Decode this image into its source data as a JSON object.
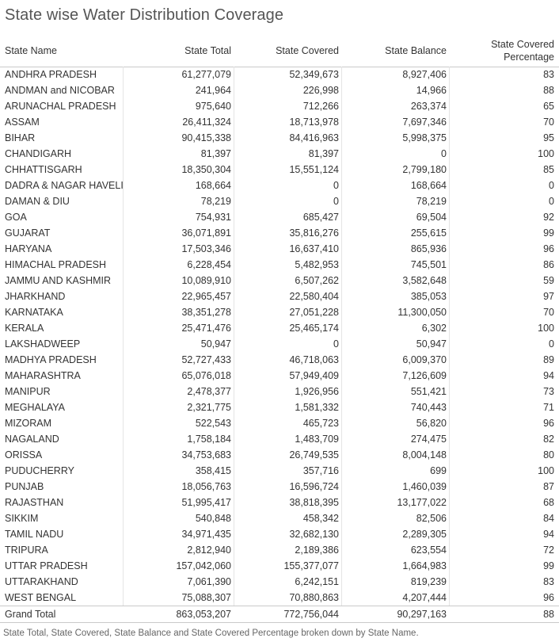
{
  "title": "State wise Water Distribution Coverage",
  "caption": "State Total, State Covered, State Balance and State Covered Percentage broken down by State Name.",
  "chart_data": {
    "type": "table",
    "columns": [
      "State Name",
      "State Total",
      "State Covered",
      "State Balance",
      "State Covered Percentage"
    ],
    "header": {
      "state": "State Name",
      "total": "State Total",
      "covered": "State Covered",
      "balance": "State Balance",
      "pct_line1": "State Covered",
      "pct_line2": "Percentage"
    },
    "rows": [
      [
        "ANDHRA PRADESH",
        "61,277,079",
        "52,349,673",
        "8,927,406",
        "83"
      ],
      [
        "ANDMAN and NICOBAR",
        "241,964",
        "226,998",
        "14,966",
        "88"
      ],
      [
        "ARUNACHAL PRADESH",
        "975,640",
        "712,266",
        "263,374",
        "65"
      ],
      [
        "ASSAM",
        "26,411,324",
        "18,713,978",
        "7,697,346",
        "70"
      ],
      [
        "BIHAR",
        "90,415,338",
        "84,416,963",
        "5,998,375",
        "95"
      ],
      [
        "CHANDIGARH",
        "81,397",
        "81,397",
        "0",
        "100"
      ],
      [
        "CHHATTISGARH",
        "18,350,304",
        "15,551,124",
        "2,799,180",
        "85"
      ],
      [
        "DADRA & NAGAR HAVELI",
        "168,664",
        "0",
        "168,664",
        "0"
      ],
      [
        "DAMAN & DIU",
        "78,219",
        "0",
        "78,219",
        "0"
      ],
      [
        "GOA",
        "754,931",
        "685,427",
        "69,504",
        "92"
      ],
      [
        "GUJARAT",
        "36,071,891",
        "35,816,276",
        "255,615",
        "99"
      ],
      [
        "HARYANA",
        "17,503,346",
        "16,637,410",
        "865,936",
        "96"
      ],
      [
        "HIMACHAL PRADESH",
        "6,228,454",
        "5,482,953",
        "745,501",
        "86"
      ],
      [
        "JAMMU AND KASHMIR",
        "10,089,910",
        "6,507,262",
        "3,582,648",
        "59"
      ],
      [
        "JHARKHAND",
        "22,965,457",
        "22,580,404",
        "385,053",
        "97"
      ],
      [
        "KARNATAKA",
        "38,351,278",
        "27,051,228",
        "11,300,050",
        "70"
      ],
      [
        "KERALA",
        "25,471,476",
        "25,465,174",
        "6,302",
        "100"
      ],
      [
        "LAKSHADWEEP",
        "50,947",
        "0",
        "50,947",
        "0"
      ],
      [
        "MADHYA PRADESH",
        "52,727,433",
        "46,718,063",
        "6,009,370",
        "89"
      ],
      [
        "MAHARASHTRA",
        "65,076,018",
        "57,949,409",
        "7,126,609",
        "94"
      ],
      [
        "MANIPUR",
        "2,478,377",
        "1,926,956",
        "551,421",
        "73"
      ],
      [
        "MEGHALAYA",
        "2,321,775",
        "1,581,332",
        "740,443",
        "71"
      ],
      [
        "MIZORAM",
        "522,543",
        "465,723",
        "56,820",
        "96"
      ],
      [
        "NAGALAND",
        "1,758,184",
        "1,483,709",
        "274,475",
        "82"
      ],
      [
        "ORISSA",
        "34,753,683",
        "26,749,535",
        "8,004,148",
        "80"
      ],
      [
        "PUDUCHERRY",
        "358,415",
        "357,716",
        "699",
        "100"
      ],
      [
        "PUNJAB",
        "18,056,763",
        "16,596,724",
        "1,460,039",
        "87"
      ],
      [
        "RAJASTHAN",
        "51,995,417",
        "38,818,395",
        "13,177,022",
        "68"
      ],
      [
        "SIKKIM",
        "540,848",
        "458,342",
        "82,506",
        "84"
      ],
      [
        "TAMIL NADU",
        "34,971,435",
        "32,682,130",
        "2,289,305",
        "94"
      ],
      [
        "TRIPURA",
        "2,812,940",
        "2,189,386",
        "623,554",
        "72"
      ],
      [
        "UTTAR PRADESH",
        "157,042,060",
        "155,377,077",
        "1,664,983",
        "99"
      ],
      [
        "UTTARAKHAND",
        "7,061,390",
        "6,242,151",
        "819,239",
        "83"
      ],
      [
        "WEST BENGAL",
        "75,088,307",
        "70,880,863",
        "4,207,444",
        "96"
      ]
    ],
    "grand_total": [
      "Grand Total",
      "863,053,207",
      "772,756,044",
      "90,297,163",
      "88"
    ]
  }
}
